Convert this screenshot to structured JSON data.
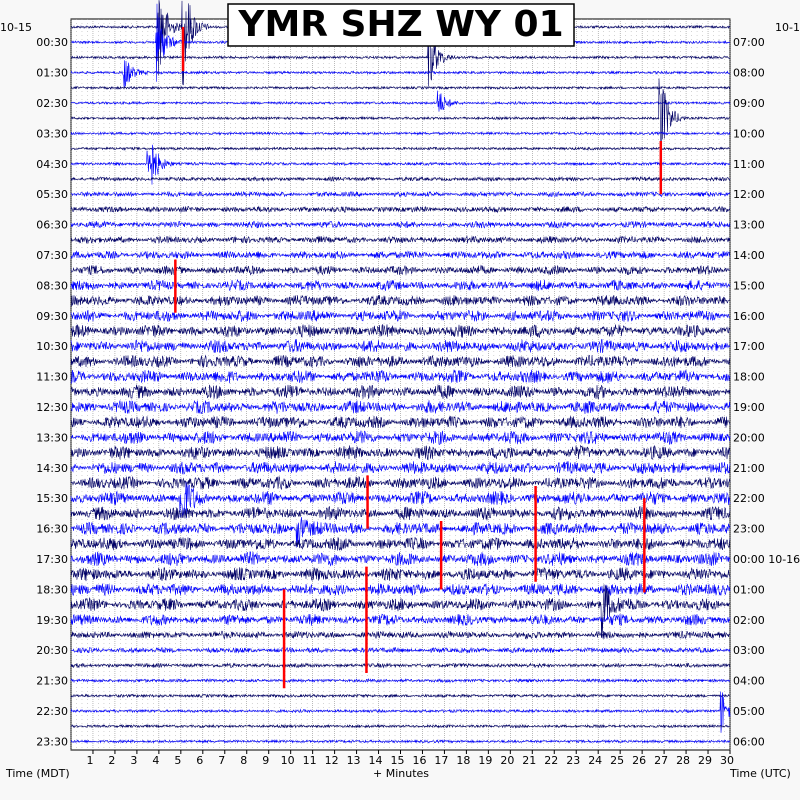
{
  "chart_data": {
    "type": "helicorder",
    "title": "YMR SHZ WY 01",
    "date_left": "10-15",
    "date_right": "10-1",
    "date_change_right": "00:00 10-16",
    "xlabel": "+ Minutes",
    "left_axis_label": "Time (MDT)",
    "right_axis_label": "Time (UTC)",
    "x_ticks": [
      "1",
      "2",
      "3",
      "4",
      "5",
      "6",
      "7",
      "8",
      "9",
      "10",
      "11",
      "12",
      "13",
      "14",
      "15",
      "16",
      "17",
      "18",
      "19",
      "20",
      "21",
      "22",
      "23",
      "24",
      "25",
      "26",
      "27",
      "28",
      "29",
      "30"
    ],
    "xlim": [
      0,
      30
    ],
    "minutes_per_line": 30,
    "lines_per_label": 2,
    "left_labels": [
      "00:30",
      "01:30",
      "02:30",
      "03:30",
      "04:30",
      "05:30",
      "06:30",
      "07:30",
      "08:30",
      "09:30",
      "10:30",
      "11:30",
      "12:30",
      "13:30",
      "14:30",
      "15:30",
      "16:30",
      "17:30",
      "18:30",
      "19:30",
      "20:30",
      "21:30",
      "22:30",
      "23:30"
    ],
    "right_labels": [
      "07:00",
      "08:00",
      "09:00",
      "10:00",
      "11:00",
      "12:00",
      "13:00",
      "14:00",
      "15:00",
      "16:00",
      "17:00",
      "18:00",
      "19:00",
      "20:00",
      "21:00",
      "22:00",
      "23:00",
      "",
      "01:00",
      "02:00",
      "03:00",
      "04:00",
      "05:00",
      "06:00"
    ],
    "trace_colors": [
      "#000066",
      "#0000ff"
    ],
    "clip_color": "#ff0000",
    "grid": true,
    "activity_envelope": [
      0.06,
      0.05,
      0.05,
      0.06,
      0.05,
      0.05,
      0.05,
      0.05,
      0.06,
      0.08,
      0.18,
      0.28,
      0.34,
      0.4,
      0.45,
      0.55,
      0.62,
      0.72,
      0.82,
      0.88,
      0.92,
      0.95,
      0.97,
      0.98,
      0.98,
      0.98,
      0.98,
      0.98,
      0.98,
      0.98,
      0.98,
      0.98,
      0.98,
      0.98,
      0.98,
      0.98,
      0.98,
      0.96,
      0.9,
      0.78,
      0.5,
      0.3,
      0.18,
      0.12,
      0.1,
      0.08,
      0.07,
      0.06
    ],
    "events": [
      {
        "line": 0,
        "minute": 4.0,
        "amp": 3.2
      },
      {
        "line": 0,
        "minute": 5.1,
        "amp": 4.0
      },
      {
        "line": 1,
        "minute": 3.9,
        "amp": 2.6
      },
      {
        "line": 2,
        "minute": 16.3,
        "amp": 2.2
      },
      {
        "line": 3,
        "minute": 2.4,
        "amp": 1.2
      },
      {
        "line": 5,
        "minute": 16.7,
        "amp": 1.0
      },
      {
        "line": 6,
        "minute": 26.8,
        "amp": 3.5
      },
      {
        "line": 9,
        "minute": 3.5,
        "amp": 2.8
      },
      {
        "line": 31,
        "minute": 5.0,
        "amp": 2.0
      },
      {
        "line": 33,
        "minute": 10.3,
        "amp": 1.4
      },
      {
        "line": 38,
        "minute": 24.2,
        "amp": 2.0
      },
      {
        "line": 45,
        "minute": 29.6,
        "amp": 1.6
      }
    ],
    "clip_marks": [
      {
        "minute": 5.1,
        "from_line": 0,
        "to_line": 2.9
      },
      {
        "minute": 26.85,
        "from_line": 7.5,
        "to_line": 11
      },
      {
        "minute": 4.75,
        "from_line": 15.3,
        "to_line": 18.8
      },
      {
        "minute": 13.5,
        "from_line": 29.5,
        "to_line": 33
      },
      {
        "minute": 21.15,
        "from_line": 30.2,
        "to_line": 36.5
      },
      {
        "minute": 16.85,
        "from_line": 32.5,
        "to_line": 37
      },
      {
        "minute": 26.1,
        "from_line": 31,
        "to_line": 37.2
      },
      {
        "minute": 13.45,
        "from_line": 35.5,
        "to_line": 42.5
      },
      {
        "minute": 9.7,
        "from_line": 37,
        "to_line": 43.5
      }
    ]
  }
}
